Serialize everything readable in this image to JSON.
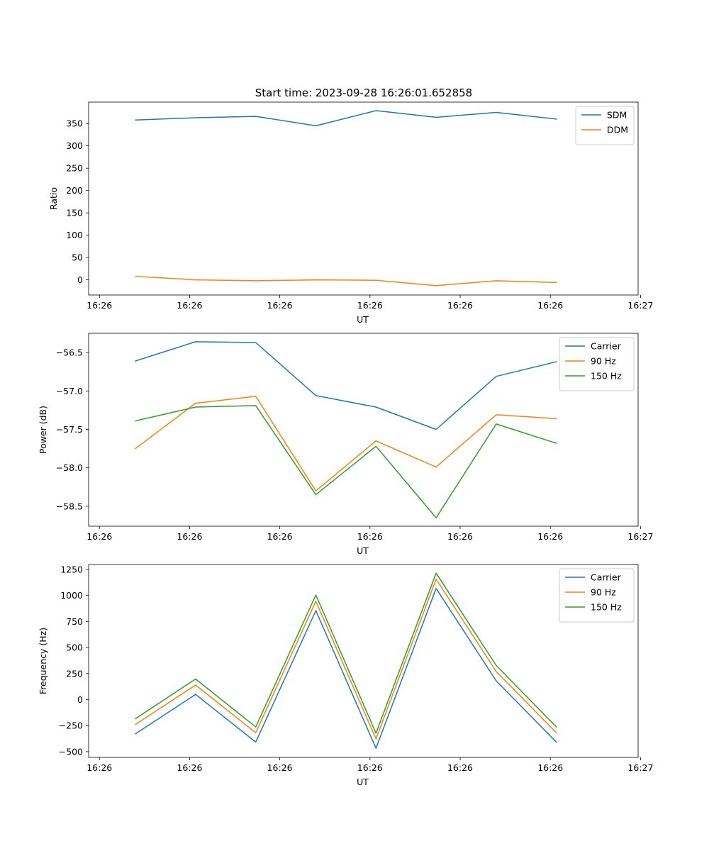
{
  "figure_title": "Start time: 2023-09-28 16:26:01.652858",
  "chart_data": [
    {
      "type": "line",
      "title": "Start time: 2023-09-28 16:26:01.652858",
      "xlabel": "UT",
      "ylabel": "Ratio",
      "x": [
        1,
        2,
        3,
        4,
        5,
        6,
        7,
        8
      ],
      "xlim": [
        0.22,
        9.36
      ],
      "x_ticks": [
        0.4,
        1.9,
        3.4,
        4.9,
        6.4,
        7.9,
        9.4
      ],
      "x_tick_labels": [
        "16:26",
        "16:26",
        "16:26",
        "16:26",
        "16:26",
        "16:26",
        "16:27"
      ],
      "ylim": [
        -34,
        398
      ],
      "y_ticks": [
        0,
        50,
        100,
        150,
        200,
        250,
        300,
        350
      ],
      "y_tick_labels": [
        "0",
        "50",
        "100",
        "150",
        "200",
        "250",
        "300",
        "350"
      ],
      "legend_position": "top-right",
      "series": [
        {
          "name": "SDM",
          "color": "#1f77b4",
          "values": [
            358,
            363,
            366,
            345,
            379,
            364,
            375,
            360
          ]
        },
        {
          "name": "DDM",
          "color": "#ff7f0e",
          "values": [
            8,
            0,
            -2,
            0,
            -1,
            -13,
            -2,
            -6
          ]
        }
      ]
    },
    {
      "type": "line",
      "title": "",
      "xlabel": "UT",
      "ylabel": "Power (dB)",
      "x": [
        1,
        2,
        3,
        4,
        5,
        6,
        7,
        8
      ],
      "xlim": [
        0.22,
        9.36
      ],
      "x_ticks": [
        0.4,
        1.9,
        3.4,
        4.9,
        6.4,
        7.9,
        9.4
      ],
      "x_tick_labels": [
        "16:26",
        "16:26",
        "16:26",
        "16:26",
        "16:26",
        "16:26",
        "16:27"
      ],
      "ylim": [
        -58.76,
        -56.25
      ],
      "y_ticks": [
        -58.5,
        -58.0,
        -57.5,
        -57.0,
        -56.5
      ],
      "y_tick_labels": [
        "−58.5",
        "−58.0",
        "−57.5",
        "−57.0",
        "−56.5"
      ],
      "legend_position": "top-right",
      "series": [
        {
          "name": "Carrier",
          "color": "#1f77b4",
          "values": [
            -56.61,
            -56.36,
            -56.37,
            -57.06,
            -57.21,
            -57.5,
            -56.81,
            -56.62
          ]
        },
        {
          "name": "90 Hz",
          "color": "#ff7f0e",
          "values": [
            -57.75,
            -57.16,
            -57.07,
            -58.3,
            -57.65,
            -57.99,
            -57.31,
            -57.36
          ]
        },
        {
          "name": "150 Hz",
          "color": "#2ca02c",
          "values": [
            -57.39,
            -57.21,
            -57.19,
            -58.35,
            -57.72,
            -58.65,
            -57.43,
            -57.68
          ]
        }
      ]
    },
    {
      "type": "line",
      "title": "",
      "xlabel": "UT",
      "ylabel": "Frequency (Hz)",
      "x": [
        1,
        2,
        3,
        4,
        5,
        6,
        7,
        8
      ],
      "xlim": [
        0.22,
        9.36
      ],
      "x_ticks": [
        0.4,
        1.9,
        3.4,
        4.9,
        6.4,
        7.9,
        9.4
      ],
      "x_tick_labels": [
        "16:26",
        "16:26",
        "16:26",
        "16:26",
        "16:26",
        "16:26",
        "16:27"
      ],
      "ylim": [
        -555,
        1298
      ],
      "y_ticks": [
        -500,
        -250,
        0,
        250,
        500,
        750,
        1000,
        1250
      ],
      "y_tick_labels": [
        "−500",
        "−250",
        "0",
        "250",
        "500",
        "750",
        "1000",
        "1250"
      ],
      "legend_position": "top-right",
      "series": [
        {
          "name": "Carrier",
          "color": "#1f77b4",
          "values": [
            -328,
            50,
            -408,
            855,
            -468,
            1068,
            180,
            -408
          ]
        },
        {
          "name": "90 Hz",
          "color": "#ff7f0e",
          "values": [
            -238,
            140,
            -318,
            945,
            -378,
            1158,
            270,
            -318
          ]
        },
        {
          "name": "150 Hz",
          "color": "#2ca02c",
          "values": [
            -183,
            198,
            -263,
            1005,
            -323,
            1215,
            328,
            -263
          ]
        }
      ]
    }
  ]
}
